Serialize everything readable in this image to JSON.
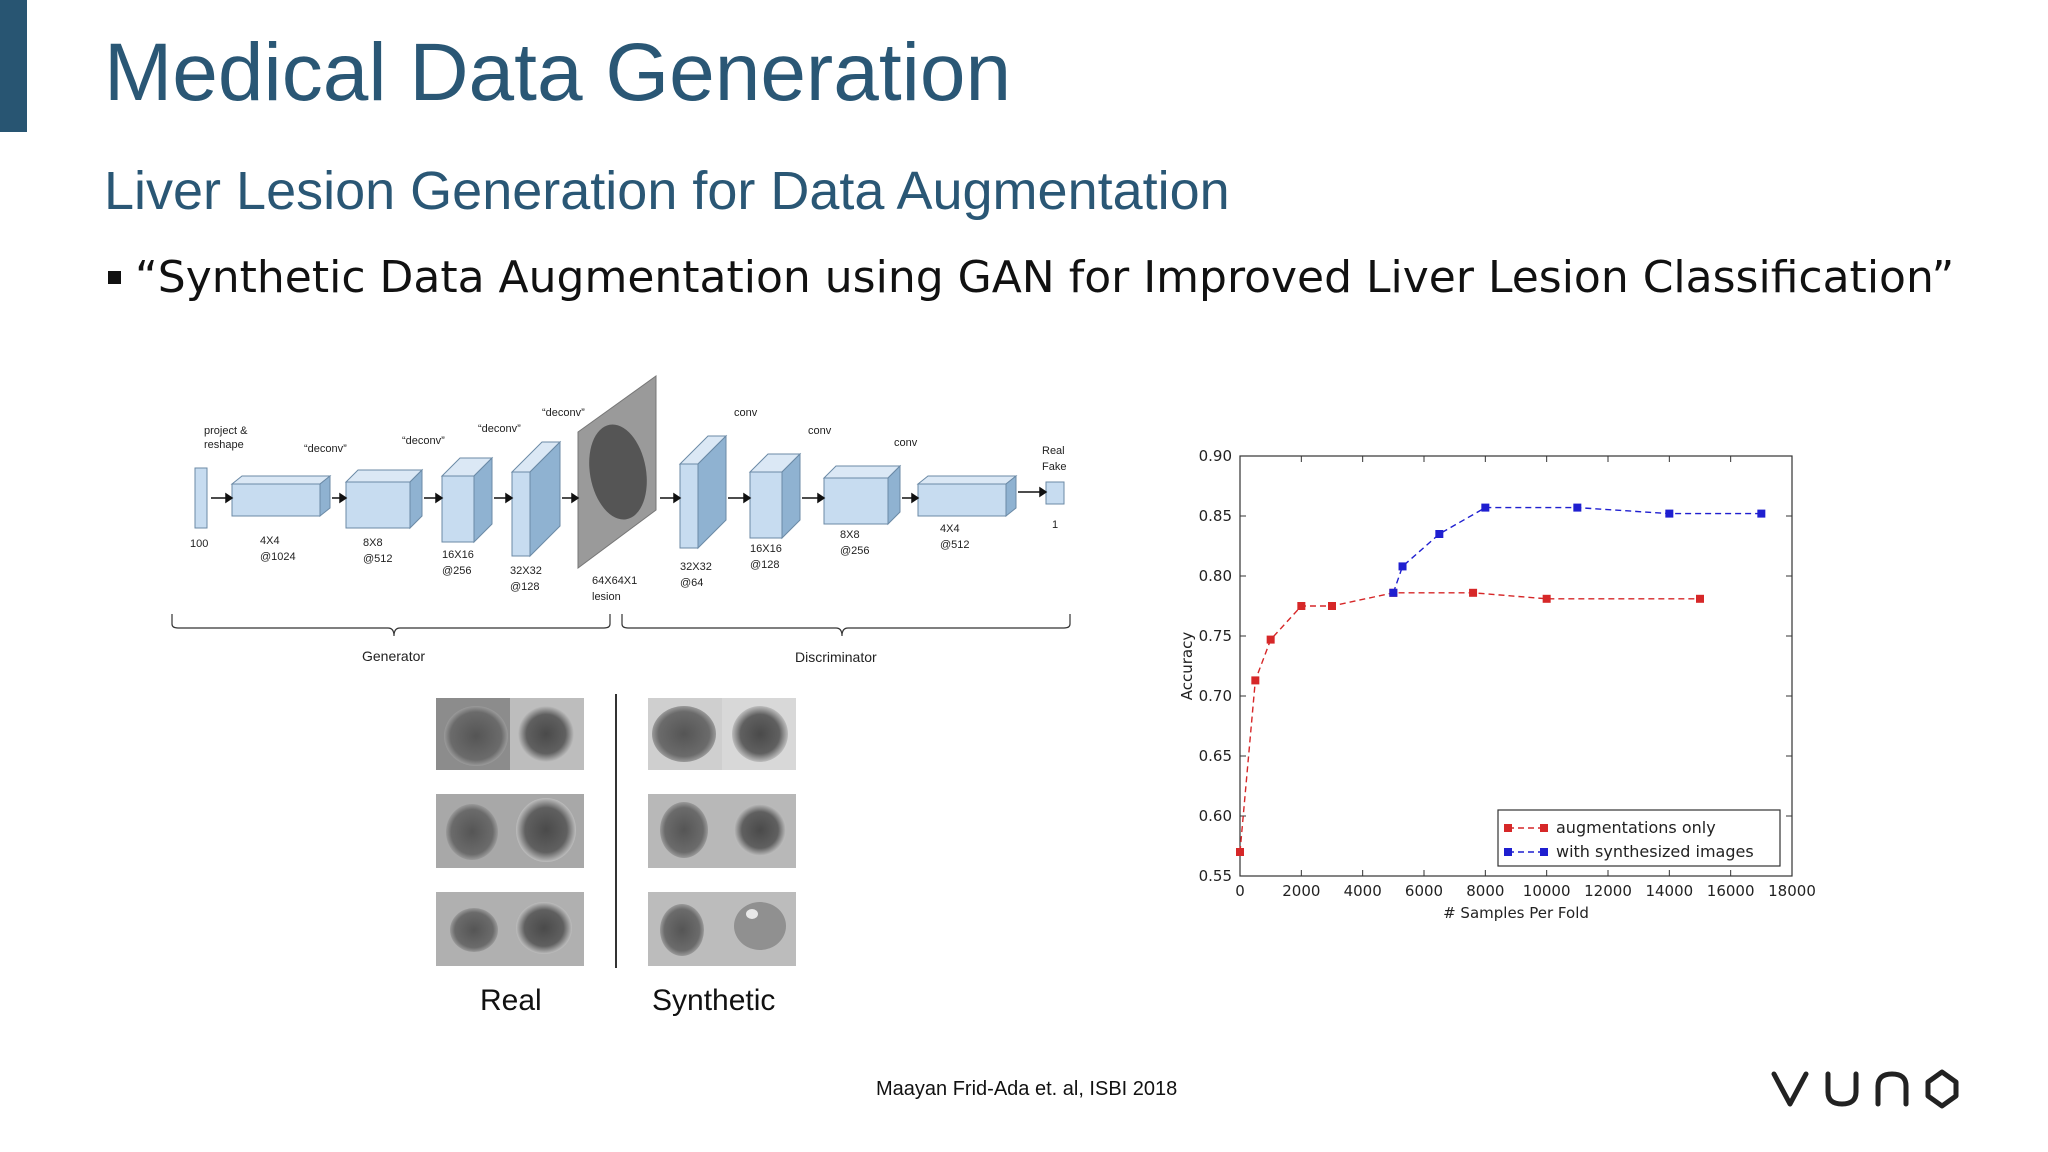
{
  "slide": {
    "title": "Medical Data Generation",
    "subtitle": "Liver Lesion Generation for Data Augmentation",
    "bullet": "“Synthetic Data Augmentation using GAN for Improved Liver Lesion Classification”",
    "citation": "Maayan Frid-Ada et. al, ISBI 2018",
    "logo_text": "VUNO",
    "accent_color": "#285572",
    "title_color": "#2a5775"
  },
  "architecture": {
    "generator_label": "Generator",
    "discriminator_label": "Discriminator",
    "input_label": "100",
    "output_top": "Real",
    "output_bottom": "Fake",
    "output_size": "1",
    "project_label_1": "project &",
    "project_label_2": "reshape",
    "gen_ops": [
      "“deconv”",
      "“deconv”",
      "“deconv”",
      "“deconv”"
    ],
    "disc_ops": [
      "conv",
      "conv",
      "conv"
    ],
    "gen_sizes": [
      [
        "4X4",
        "@1024"
      ],
      [
        "8X8",
        "@512"
      ],
      [
        "16X16",
        "@256"
      ],
      [
        "32X32",
        "@128"
      ]
    ],
    "lesion_label": [
      "64X64X1",
      "lesion"
    ],
    "disc_sizes": [
      [
        "32X32",
        "@64"
      ],
      [
        "16X16",
        "@128"
      ],
      [
        "8X8",
        "@256"
      ],
      [
        "4X4",
        "@512"
      ]
    ]
  },
  "samples": {
    "real_caption": "Real",
    "synthetic_caption": "Synthetic"
  },
  "chart_data": {
    "type": "line",
    "xlabel": "# Samples Per Fold",
    "ylabel": "Accuracy",
    "xlim": [
      0,
      18000
    ],
    "ylim": [
      0.55,
      0.9
    ],
    "xticks": [
      0,
      2000,
      4000,
      6000,
      8000,
      10000,
      12000,
      14000,
      16000,
      18000
    ],
    "yticks": [
      0.55,
      0.6,
      0.65,
      0.7,
      0.75,
      0.8,
      0.85,
      0.9
    ],
    "legend_position": "bottom-right",
    "grid": false,
    "series": [
      {
        "name": "augmentations only",
        "color": "#d62728",
        "points": [
          [
            0,
            0.57
          ],
          [
            500,
            0.713
          ],
          [
            1000,
            0.747
          ],
          [
            2000,
            0.775
          ],
          [
            3000,
            0.775
          ],
          [
            5000,
            0.786
          ],
          [
            7600,
            0.786
          ],
          [
            10000,
            0.781
          ],
          [
            15000,
            0.781
          ]
        ]
      },
      {
        "name": "with synthesized images",
        "color": "#1f1fd0",
        "points": [
          [
            5000,
            0.786
          ],
          [
            5300,
            0.808
          ],
          [
            6500,
            0.835
          ],
          [
            8000,
            0.857
          ],
          [
            11000,
            0.857
          ],
          [
            14000,
            0.852
          ],
          [
            17000,
            0.852
          ]
        ]
      }
    ]
  }
}
